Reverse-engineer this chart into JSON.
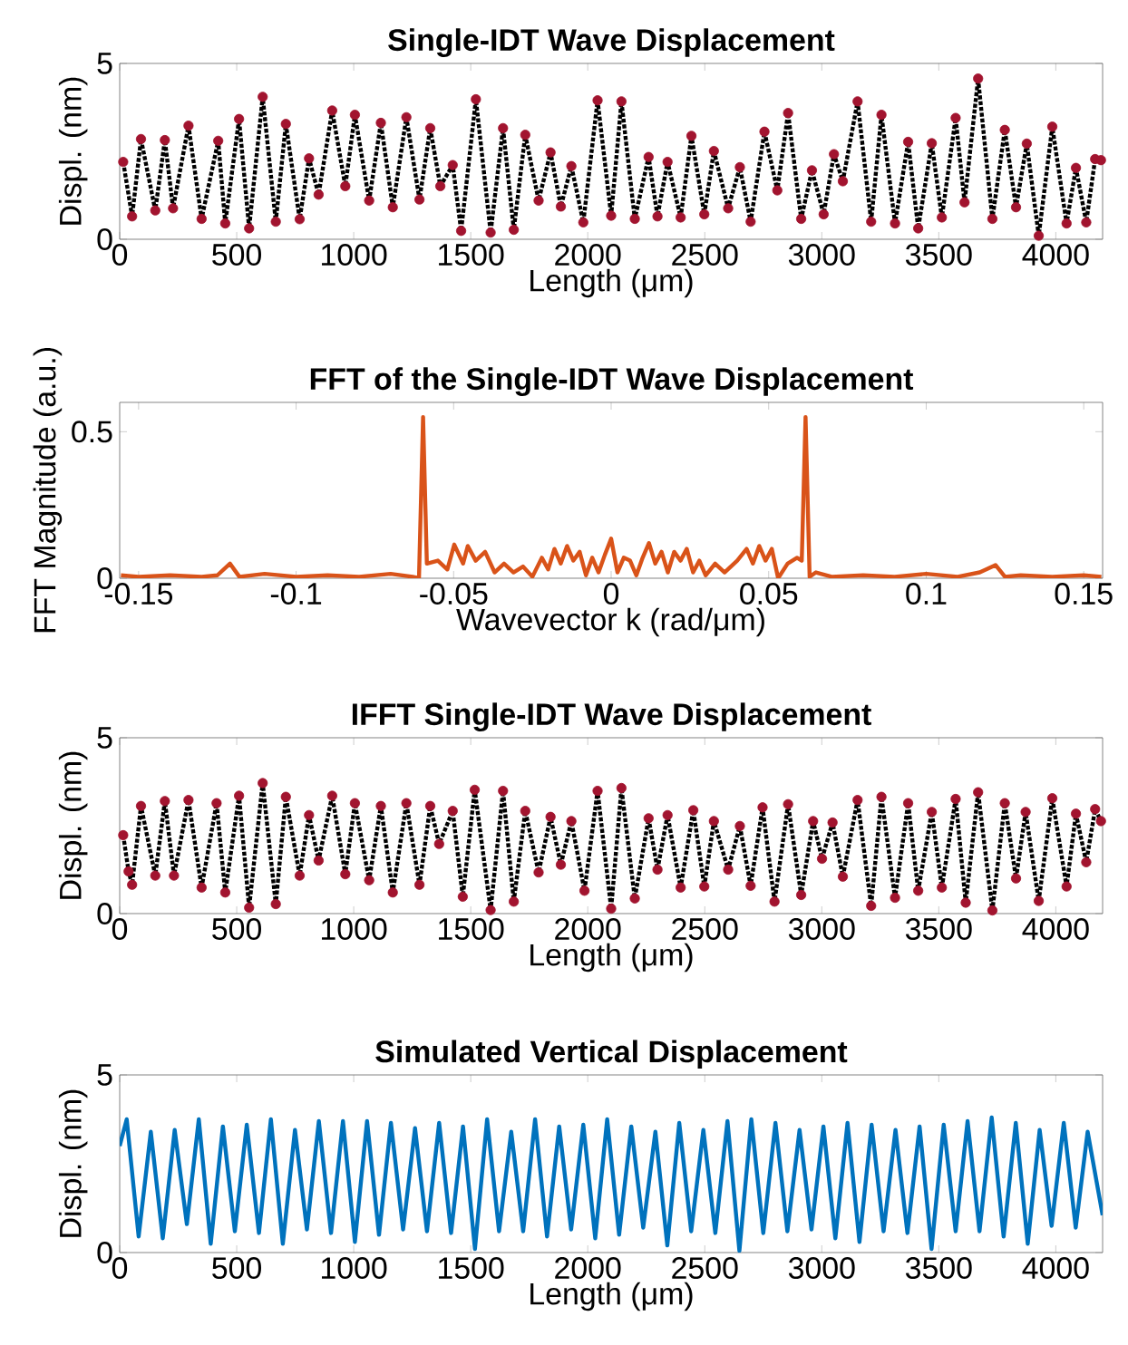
{
  "chart_data": [
    {
      "type": "line",
      "title": "Single-IDT Wave Displacement",
      "xlabel": "Length (μm)",
      "ylabel": "Displ. (nm)",
      "xlim": [
        0,
        4200
      ],
      "ylim": [
        0,
        5
      ],
      "xticks": [
        0,
        500,
        1000,
        1500,
        2000,
        2500,
        3000,
        3500,
        4000
      ],
      "yticks": [
        0,
        5
      ],
      "x": [
        15,
        53,
        91,
        152,
        193,
        228,
        294,
        350,
        421,
        451,
        510,
        553,
        611,
        667,
        710,
        769,
        809,
        850,
        908,
        964,
        1005,
        1066,
        1116,
        1167,
        1225,
        1281,
        1327,
        1370,
        1423,
        1459,
        1522,
        1585,
        1638,
        1684,
        1733,
        1790,
        1841,
        1885,
        1930,
        1981,
        2042,
        2100,
        2144,
        2201,
        2260,
        2298,
        2341,
        2397,
        2443,
        2498,
        2539,
        2600,
        2650,
        2696,
        2755,
        2810,
        2856,
        2912,
        2958,
        3008,
        3052,
        3090,
        3153,
        3211,
        3255,
        3313,
        3369,
        3412,
        3470,
        3513,
        3572,
        3610,
        3668,
        3729,
        3782,
        3830,
        3876,
        3927,
        3985,
        4046,
        4086,
        4130,
        4168,
        4193
      ],
      "series": [
        {
          "type": "line",
          "color": "#000000",
          "line_style": "dotted",
          "marker": "none",
          "values": [
            2.2,
            0.65,
            2.85,
            0.82,
            2.82,
            0.88,
            3.23,
            0.58,
            2.8,
            0.45,
            3.42,
            0.31,
            4.05,
            0.5,
            3.28,
            0.57,
            2.3,
            1.27,
            3.66,
            1.51,
            3.54,
            1.1,
            3.31,
            0.91,
            3.47,
            1.13,
            3.16,
            1.51,
            2.11,
            0.24,
            3.98,
            0.19,
            3.16,
            0.27,
            2.97,
            1.1,
            2.47,
            0.93,
            2.08,
            0.48,
            3.95,
            0.67,
            3.92,
            0.58,
            2.34,
            0.65,
            2.2,
            0.62,
            2.94,
            0.71,
            2.51,
            0.88,
            2.05,
            0.5,
            3.06,
            1.39,
            3.59,
            0.58,
            1.96,
            0.71,
            2.42,
            1.65,
            3.92,
            0.5,
            3.54,
            0.45,
            2.77,
            0.31,
            2.73,
            0.62,
            3.45,
            1.05,
            4.57,
            0.58,
            3.11,
            0.91,
            2.72,
            0.1,
            3.2,
            0.45,
            2.03,
            0.48,
            2.28,
            2.25
          ]
        },
        {
          "type": "scatter",
          "color": "#a2142f",
          "marker": "circle",
          "values": [
            2.2,
            0.65,
            2.85,
            0.82,
            2.82,
            0.88,
            3.23,
            0.58,
            2.8,
            0.45,
            3.42,
            0.31,
            4.05,
            0.5,
            3.28,
            0.57,
            2.3,
            1.27,
            3.66,
            1.51,
            3.54,
            1.1,
            3.31,
            0.91,
            3.47,
            1.13,
            3.16,
            1.51,
            2.11,
            0.24,
            3.98,
            0.19,
            3.16,
            0.27,
            2.97,
            1.1,
            2.47,
            0.93,
            2.08,
            0.48,
            3.95,
            0.67,
            3.92,
            0.58,
            2.34,
            0.65,
            2.2,
            0.62,
            2.94,
            0.71,
            2.51,
            0.88,
            2.05,
            0.5,
            3.06,
            1.39,
            3.59,
            0.58,
            1.96,
            0.71,
            2.42,
            1.65,
            3.92,
            0.5,
            3.54,
            0.45,
            2.77,
            0.31,
            2.73,
            0.62,
            3.45,
            1.05,
            4.57,
            0.58,
            3.11,
            0.91,
            2.72,
            0.1,
            3.2,
            0.45,
            2.03,
            0.48,
            2.28,
            2.25
          ]
        }
      ]
    },
    {
      "type": "line",
      "title": "FFT of the Single-IDT Wave Displacement",
      "xlabel": "Wavevector k (rad/μm)",
      "ylabel": "FFT Magnitude (a.u.)",
      "xlim": [
        -0.156,
        0.156
      ],
      "ylim": [
        0,
        0.6
      ],
      "xticks": [
        -0.15,
        -0.1,
        -0.05,
        0,
        0.05,
        0.1,
        0.15
      ],
      "yticks": [
        0,
        0.5
      ],
      "x": [
        -0.1556,
        -0.15,
        -0.14,
        -0.13,
        -0.125,
        -0.121,
        -0.118,
        -0.11,
        -0.1,
        -0.09,
        -0.08,
        -0.07,
        -0.063,
        -0.061,
        -0.0597,
        -0.0585,
        -0.055,
        -0.052,
        -0.0498,
        -0.047,
        -0.0455,
        -0.043,
        -0.04,
        -0.037,
        -0.034,
        -0.031,
        -0.028,
        -0.025,
        -0.022,
        -0.02,
        -0.018,
        -0.016,
        -0.014,
        -0.012,
        -0.01,
        -0.008,
        -0.006,
        -0.004,
        -0.002,
        0,
        0.002,
        0.004,
        0.006,
        0.008,
        0.01,
        0.012,
        0.014,
        0.016,
        0.018,
        0.02,
        0.022,
        0.024,
        0.026,
        0.028,
        0.03,
        0.033,
        0.036,
        0.04,
        0.043,
        0.045,
        0.047,
        0.049,
        0.051,
        0.053,
        0.056,
        0.059,
        0.0605,
        0.0617,
        0.063,
        0.065,
        0.07,
        0.08,
        0.09,
        0.1,
        0.11,
        0.117,
        0.122,
        0.125,
        0.13,
        0.14,
        0.15,
        0.1556
      ],
      "series": [
        {
          "color": "#d95319",
          "values": [
            0.01,
            0.005,
            0.01,
            0.005,
            0.01,
            0.05,
            0.005,
            0.015,
            0.005,
            0.01,
            0.005,
            0.015,
            0.005,
            0.0,
            0.55,
            0.05,
            0.06,
            0.03,
            0.115,
            0.05,
            0.11,
            0.06,
            0.09,
            0.02,
            0.05,
            0.02,
            0.04,
            0.005,
            0.07,
            0.03,
            0.1,
            0.05,
            0.11,
            0.06,
            0.09,
            0.01,
            0.07,
            0.02,
            0.08,
            0.135,
            0.02,
            0.07,
            0.06,
            0.01,
            0.07,
            0.12,
            0.05,
            0.09,
            0.02,
            0.09,
            0.06,
            0.1,
            0.02,
            0.06,
            0.01,
            0.05,
            0.02,
            0.06,
            0.1,
            0.05,
            0.11,
            0.06,
            0.1,
            0.0,
            0.05,
            0.07,
            0.06,
            0.55,
            0.005,
            0.02,
            0.005,
            0.01,
            0.005,
            0.015,
            0.005,
            0.02,
            0.045,
            0.005,
            0.01,
            0.005,
            0.01,
            0.005
          ]
        }
      ]
    },
    {
      "type": "line",
      "title": "IFFT Single-IDT Wave Displacement",
      "xlabel": "Length (μm)",
      "ylabel": "Displ. (nm)",
      "xlim": [
        0,
        4200
      ],
      "ylim": [
        0,
        5
      ],
      "xticks": [
        0,
        500,
        1000,
        1500,
        2000,
        2500,
        3000,
        3500,
        4000
      ],
      "yticks": [
        0,
        5
      ],
      "x": [
        15,
        38,
        53,
        91,
        152,
        193,
        232,
        294,
        350,
        414,
        451,
        510,
        553,
        611,
        667,
        710,
        769,
        809,
        850,
        908,
        964,
        1005,
        1066,
        1116,
        1167,
        1225,
        1281,
        1327,
        1365,
        1423,
        1466,
        1517,
        1585,
        1638,
        1684,
        1733,
        1790,
        1841,
        1885,
        1930,
        1986,
        2042,
        2100,
        2144,
        2201,
        2260,
        2298,
        2341,
        2397,
        2451,
        2498,
        2539,
        2600,
        2650,
        2696,
        2747,
        2798,
        2856,
        2912,
        2963,
        3001,
        3046,
        3090,
        3153,
        3211,
        3255,
        3313,
        3369,
        3412,
        3470,
        3513,
        3572,
        3615,
        3668,
        3729,
        3782,
        3830,
        3871,
        3927,
        3985,
        4046,
        4086,
        4130,
        4168,
        4193
      ],
      "series": [
        {
          "type": "line",
          "color": "#000000",
          "line_style": "dotted",
          "marker": "none",
          "values": [
            2.23,
            1.2,
            0.82,
            3.06,
            1.08,
            3.2,
            1.08,
            3.23,
            0.74,
            3.14,
            0.6,
            3.35,
            0.17,
            3.71,
            0.27,
            3.32,
            1.08,
            2.8,
            1.51,
            3.35,
            1.12,
            3.14,
            0.95,
            3.06,
            0.6,
            3.14,
            0.82,
            3.06,
            1.98,
            2.92,
            0.48,
            3.52,
            0.1,
            3.49,
            0.34,
            2.92,
            1.17,
            2.75,
            1.39,
            2.63,
            0.65,
            3.49,
            0.14,
            3.57,
            0.43,
            2.71,
            1.25,
            2.8,
            0.74,
            2.94,
            0.77,
            2.63,
            1.25,
            2.49,
            0.79,
            3.02,
            0.34,
            3.11,
            0.53,
            2.63,
            1.56,
            2.59,
            1.05,
            3.23,
            0.22,
            3.32,
            0.45,
            3.14,
            0.65,
            2.89,
            0.74,
            3.26,
            0.31,
            3.45,
            0.09,
            3.14,
            1.0,
            2.89,
            0.36,
            3.28,
            0.77,
            2.84,
            1.46,
            2.97,
            2.63
          ]
        },
        {
          "type": "scatter",
          "color": "#a2142f",
          "marker": "circle",
          "values": [
            2.23,
            1.2,
            0.82,
            3.06,
            1.08,
            3.2,
            1.08,
            3.23,
            0.74,
            3.14,
            0.6,
            3.35,
            0.17,
            3.71,
            0.27,
            3.32,
            1.08,
            2.8,
            1.51,
            3.35,
            1.12,
            3.14,
            0.95,
            3.06,
            0.6,
            3.14,
            0.82,
            3.06,
            1.98,
            2.92,
            0.48,
            3.52,
            0.1,
            3.49,
            0.34,
            2.92,
            1.17,
            2.75,
            1.39,
            2.63,
            0.65,
            3.49,
            0.14,
            3.57,
            0.43,
            2.71,
            1.25,
            2.8,
            0.74,
            2.94,
            0.77,
            2.63,
            1.25,
            2.49,
            0.79,
            3.02,
            0.34,
            3.11,
            0.53,
            2.63,
            1.56,
            2.59,
            1.05,
            3.23,
            0.22,
            3.32,
            0.45,
            3.14,
            0.65,
            2.89,
            0.74,
            3.26,
            0.31,
            3.45,
            0.09,
            3.14,
            1.0,
            2.89,
            0.36,
            3.28,
            0.77,
            2.84,
            1.46,
            2.97,
            2.63
          ]
        }
      ]
    },
    {
      "type": "line",
      "title": "Simulated Vertical Displacement",
      "xlabel": "Length (μm)",
      "ylabel": "Displ. (nm)",
      "xlim": [
        0,
        4200
      ],
      "ylim": [
        0,
        5
      ],
      "xticks": [
        0,
        500,
        1000,
        1500,
        2000,
        2500,
        3000,
        3500,
        4000
      ],
      "yticks": [
        0,
        5
      ],
      "x": [
        0,
        30,
        81,
        133,
        184,
        235,
        287,
        338,
        389,
        441,
        492,
        543,
        595,
        646,
        697,
        749,
        800,
        851,
        903,
        954,
        1005,
        1057,
        1108,
        1159,
        1211,
        1262,
        1313,
        1365,
        1416,
        1467,
        1518,
        1570,
        1621,
        1673,
        1724,
        1775,
        1826,
        1878,
        1929,
        1981,
        2032,
        2083,
        2134,
        2186,
        2237,
        2289,
        2340,
        2391,
        2442,
        2494,
        2545,
        2597,
        2648,
        2699,
        2750,
        2802,
        2853,
        2905,
        2956,
        3007,
        3058,
        3110,
        3161,
        3213,
        3264,
        3315,
        3366,
        3418,
        3469,
        3521,
        3572,
        3623,
        3674,
        3726,
        3777,
        3829,
        3880,
        3931,
        3982,
        4034,
        4085,
        4136,
        4200
      ],
      "series": [
        {
          "color": "#0072bd",
          "values": [
            3.0,
            3.75,
            0.45,
            3.4,
            0.4,
            3.45,
            0.8,
            3.75,
            0.25,
            3.55,
            0.6,
            3.6,
            0.55,
            3.75,
            0.25,
            3.45,
            0.65,
            3.7,
            0.55,
            3.7,
            0.3,
            3.7,
            0.5,
            3.65,
            0.65,
            3.5,
            0.6,
            3.65,
            0.55,
            3.55,
            0.1,
            3.75,
            0.6,
            3.4,
            0.6,
            3.75,
            0.45,
            3.55,
            0.65,
            3.6,
            0.4,
            3.75,
            0.5,
            3.55,
            0.7,
            3.4,
            0.2,
            3.65,
            0.6,
            3.45,
            0.55,
            3.7,
            0.05,
            3.75,
            0.55,
            3.65,
            0.6,
            3.45,
            0.65,
            3.55,
            0.4,
            3.65,
            0.3,
            3.6,
            0.6,
            3.45,
            0.55,
            3.55,
            0.1,
            3.6,
            0.6,
            3.7,
            0.6,
            3.8,
            0.45,
            3.65,
            0.25,
            3.45,
            0.75,
            3.65,
            0.7,
            3.4,
            1.05
          ]
        }
      ]
    }
  ]
}
